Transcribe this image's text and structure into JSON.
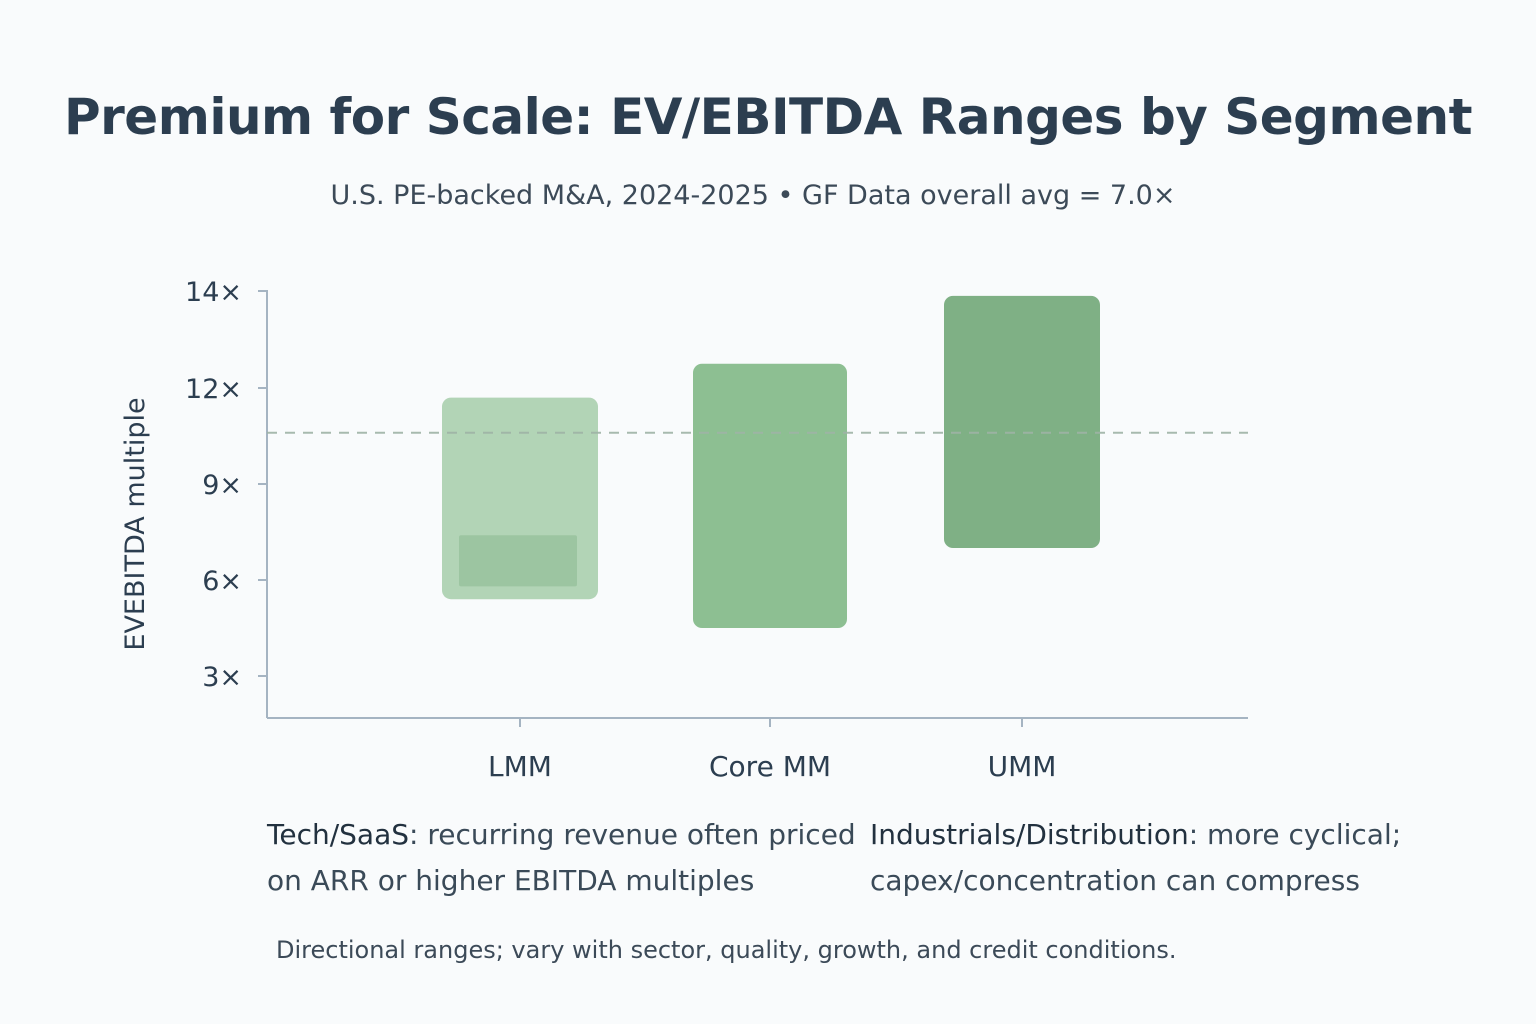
{
  "title": "Premium for Scale: EV/EBITDA Ranges by Segment",
  "subtitle": "U.S. PE-backed M&A, 2024-2025 • GF Data overall avg = 7.0×",
  "chart_data": {
    "type": "bar",
    "subtype": "floating-range",
    "ylabel": "EVEBITDA multiple",
    "xlabel": "",
    "y_ticks": [
      {
        "value": 3,
        "label": "3×"
      },
      {
        "value": 6,
        "label": "6×"
      },
      {
        "value": 9,
        "label": "9×"
      },
      {
        "value": 12,
        "label": "12×"
      },
      {
        "value": 14,
        "label": "14×"
      }
    ],
    "categories": [
      "LMM",
      "Core MM",
      "UMM"
    ],
    "ranges": [
      {
        "name": "LMM",
        "low": 5.4,
        "high": 11.7,
        "color": "#b2d4b6",
        "inner_low": 5.8,
        "inner_high": 7.4,
        "inner_color": "#9cc5a1"
      },
      {
        "name": "Core MM",
        "low": 4.5,
        "high": 12.5,
        "color": "#8dbf92"
      },
      {
        "name": "UMM",
        "low": 7.0,
        "high": 13.9,
        "color": "#7fb085"
      }
    ],
    "reference_line": {
      "value": 10.6,
      "style": "dashed",
      "color": "#9fb3a6"
    },
    "grid": false
  },
  "notes": {
    "left": {
      "keyword": "Tech/SaaS",
      "text": ": recurring revenue often priced on ARR or higher EBITDA multiples"
    },
    "right": {
      "keyword": "Industrials/Distribution",
      "text": ": more cyclical; capex/concentration can compress"
    }
  },
  "footnote": "Directional ranges; vary with sector, quality, growth, and credit conditions.",
  "colors": {
    "axis": "#a5b4c2",
    "text": "#2c3e50",
    "background": "#f9fbfc"
  }
}
